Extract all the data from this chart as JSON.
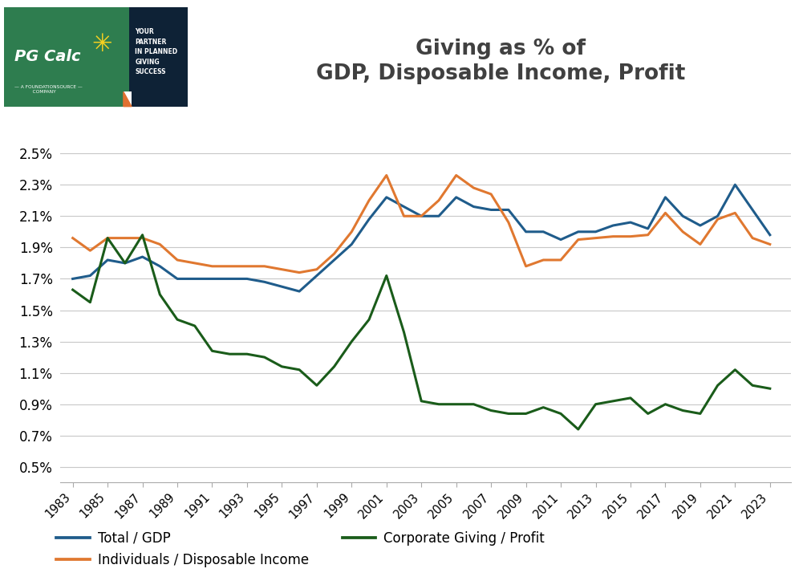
{
  "title_line1": "Giving as % of",
  "title_line2": "GDP, Disposable Income, Profit",
  "title_fontsize": 19,
  "years": [
    1983,
    1984,
    1985,
    1986,
    1987,
    1988,
    1989,
    1990,
    1991,
    1992,
    1993,
    1994,
    1995,
    1996,
    1997,
    1998,
    1999,
    2000,
    2001,
    2002,
    2003,
    2004,
    2005,
    2006,
    2007,
    2008,
    2009,
    2010,
    2011,
    2012,
    2013,
    2014,
    2015,
    2016,
    2017,
    2018,
    2019,
    2020,
    2021,
    2022,
    2023
  ],
  "total_gdp": [
    1.7,
    1.72,
    1.82,
    1.8,
    1.84,
    1.78,
    1.7,
    1.7,
    1.7,
    1.7,
    1.7,
    1.68,
    1.65,
    1.62,
    1.72,
    1.82,
    1.92,
    2.08,
    2.22,
    2.16,
    2.1,
    2.1,
    2.22,
    2.16,
    2.14,
    2.14,
    2.0,
    2.0,
    1.95,
    2.0,
    2.0,
    2.04,
    2.06,
    2.02,
    2.22,
    2.1,
    2.04,
    2.1,
    2.3,
    2.14,
    1.98
  ],
  "individuals_disposable": [
    1.96,
    1.88,
    1.96,
    1.96,
    1.96,
    1.92,
    1.82,
    1.8,
    1.78,
    1.78,
    1.78,
    1.78,
    1.76,
    1.74,
    1.76,
    1.86,
    2.0,
    2.2,
    2.36,
    2.1,
    2.1,
    2.2,
    2.36,
    2.28,
    2.24,
    2.06,
    1.78,
    1.82,
    1.82,
    1.95,
    1.96,
    1.97,
    1.97,
    1.98,
    2.12,
    2.0,
    1.92,
    2.08,
    2.12,
    1.96,
    1.92
  ],
  "corporate_profit": [
    1.63,
    1.55,
    1.96,
    1.8,
    1.98,
    1.6,
    1.44,
    1.4,
    1.24,
    1.22,
    1.22,
    1.2,
    1.14,
    1.12,
    1.02,
    1.14,
    1.3,
    1.44,
    1.72,
    1.36,
    0.92,
    0.9,
    0.9,
    0.9,
    0.86,
    0.84,
    0.84,
    0.88,
    0.84,
    0.74,
    0.9,
    0.92,
    0.94,
    0.84,
    0.9,
    0.86,
    0.84,
    1.02,
    1.12,
    1.02,
    1.0
  ],
  "color_gdp": "#1f5c8b",
  "color_disposable": "#e07830",
  "color_corporate": "#1a5c1a",
  "ytick_vals": [
    0.005,
    0.007,
    0.009,
    0.011,
    0.013,
    0.015,
    0.017,
    0.019,
    0.021,
    0.023,
    0.025
  ],
  "ytick_labels": [
    "0.5%",
    "0.7%",
    "0.9%",
    "1.1%",
    "1.3%",
    "1.5%",
    "1.7%",
    "1.9%",
    "2.1%",
    "2.3%",
    "2.5%"
  ],
  "xtick_years": [
    1983,
    1985,
    1987,
    1989,
    1991,
    1993,
    1995,
    1997,
    1999,
    2001,
    2003,
    2005,
    2007,
    2009,
    2011,
    2013,
    2015,
    2017,
    2019,
    2021,
    2023
  ],
  "legend_gdp": "Total / GDP",
  "legend_disposable": "Individuals / Disposable Income",
  "legend_corporate": "Corporate Giving / Profit",
  "background_color": "#ffffff",
  "grid_color": "#c8c8c8",
  "line_width": 2.2,
  "logo_green": "#2e7d4f",
  "logo_navy": "#1e3a5a",
  "logo_dark_navy": "#0e2236"
}
